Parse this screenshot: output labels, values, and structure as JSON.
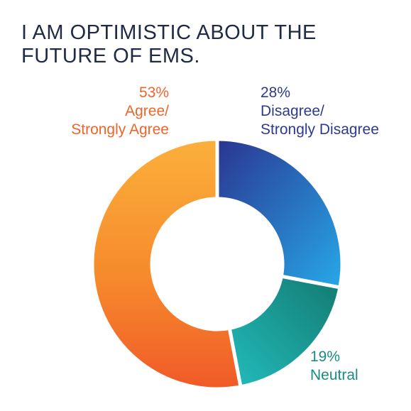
{
  "title_lines": [
    "I AM OPTIMISTIC ABOUT THE",
    "FUTURE OF EMS."
  ],
  "chart_data": {
    "type": "pie",
    "title": "I AM OPTIMISTIC ABOUT THE FUTURE OF EMS.",
    "donut": true,
    "slices": [
      {
        "label_lines": [
          "Disagree/",
          "Strongly Disagree"
        ],
        "value": 28,
        "value_label": "28%",
        "color": "#2a58b8"
      },
      {
        "label_lines": [
          "Neutral"
        ],
        "value": 19,
        "value_label": "19%",
        "color": "#1aa5a0"
      },
      {
        "label_lines": [
          "Agree/",
          "Strongly Agree"
        ],
        "value": 53,
        "value_label": "53%",
        "color": "#f58a2f"
      }
    ]
  }
}
